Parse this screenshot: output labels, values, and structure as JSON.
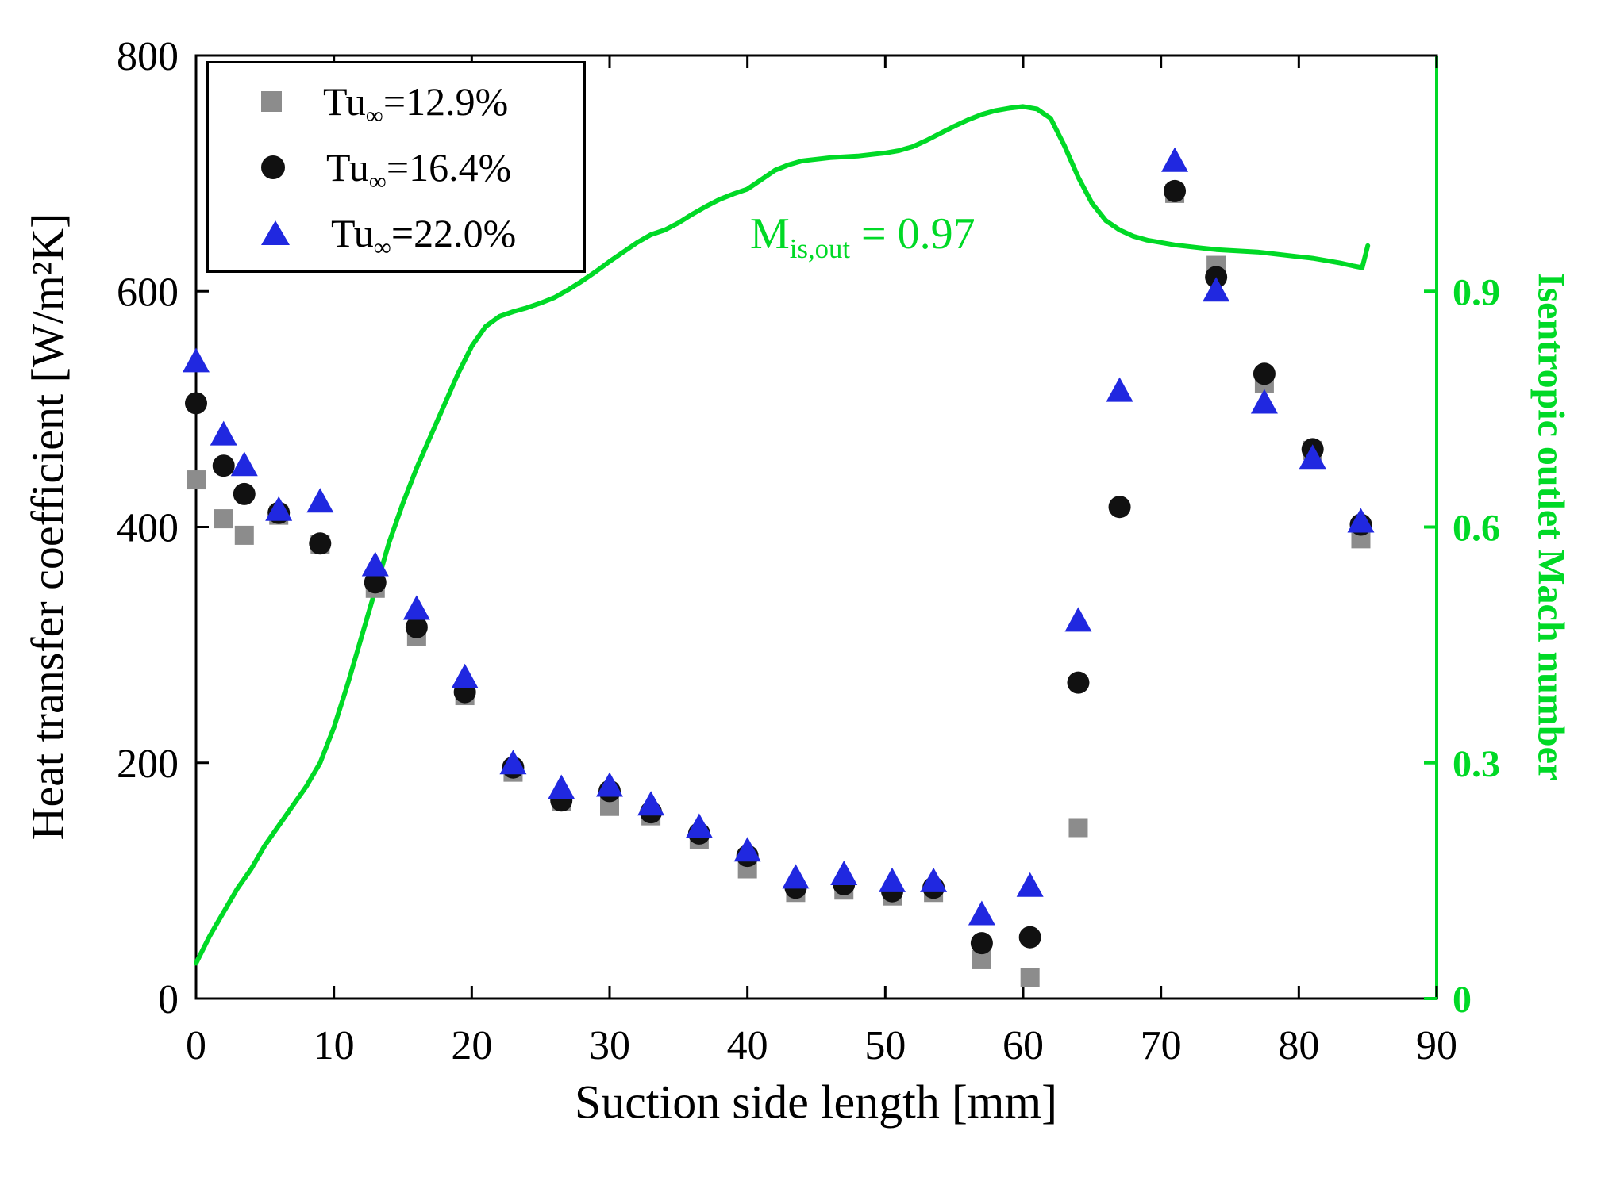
{
  "chart_data": {
    "type": "scatter",
    "title": "",
    "xlabel": "Suction side length [mm]",
    "ylabel_left": "Heat transfer coefficient [W/m²K]",
    "ylabel_right": "Isentropic outlet Mach number",
    "xlim": [
      0,
      90
    ],
    "ylim_left": [
      0,
      800
    ],
    "ylim_right": [
      0,
      1.2
    ],
    "x_ticks": [
      0,
      10,
      20,
      30,
      40,
      50,
      60,
      70,
      80,
      90
    ],
    "y_ticks_left": [
      0,
      200,
      400,
      600,
      800
    ],
    "y_ticks_right": [
      {
        "v": 0,
        "label": "0"
      },
      {
        "v": 0.3,
        "label": "0.3"
      },
      {
        "v": 0.6,
        "label": "0.6"
      },
      {
        "v": 0.9,
        "label": "0.9"
      }
    ],
    "grid": false,
    "legend_position": "top-left",
    "annotation": {
      "base": "M",
      "sub": "is,out",
      "rest": " = 0.97"
    },
    "series": [
      {
        "name": "Tu_inf=12.9%",
        "legend": {
          "base": "Tu",
          "sub": "∞",
          "rest": "=12.9%"
        },
        "marker": "square",
        "color": "#8c8c8c",
        "axis": "left",
        "points": [
          [
            0,
            440
          ],
          [
            2,
            407
          ],
          [
            3.5,
            393
          ],
          [
            6,
            410
          ],
          [
            9,
            385
          ],
          [
            13,
            348
          ],
          [
            16,
            307
          ],
          [
            19.5,
            257
          ],
          [
            23,
            192
          ],
          [
            26.5,
            167
          ],
          [
            30,
            163
          ],
          [
            33,
            155
          ],
          [
            36.5,
            135
          ],
          [
            40,
            110
          ],
          [
            43.5,
            90
          ],
          [
            47,
            92
          ],
          [
            50.5,
            87
          ],
          [
            53.5,
            90
          ],
          [
            57,
            33
          ],
          [
            60.5,
            18
          ],
          [
            64,
            145
          ],
          [
            71,
            683
          ],
          [
            74,
            622
          ],
          [
            77.5,
            522
          ],
          [
            81,
            465
          ],
          [
            84.5,
            390
          ]
        ]
      },
      {
        "name": "Tu_inf=16.4%",
        "legend": {
          "base": "Tu",
          "sub": "∞",
          "rest": "=16.4%"
        },
        "marker": "circle",
        "color": "#111111",
        "axis": "left",
        "points": [
          [
            0,
            505
          ],
          [
            2,
            452
          ],
          [
            3.5,
            428
          ],
          [
            6,
            412
          ],
          [
            9,
            386
          ],
          [
            13,
            353
          ],
          [
            16,
            315
          ],
          [
            19.5,
            260
          ],
          [
            23,
            196
          ],
          [
            26.5,
            168
          ],
          [
            30,
            176
          ],
          [
            33,
            158
          ],
          [
            36.5,
            140
          ],
          [
            40,
            121
          ],
          [
            43.5,
            94
          ],
          [
            47,
            97
          ],
          [
            50.5,
            91
          ],
          [
            53.5,
            94
          ],
          [
            57,
            47
          ],
          [
            60.5,
            52
          ],
          [
            64,
            268
          ],
          [
            67,
            417
          ],
          [
            71,
            685
          ],
          [
            74,
            612
          ],
          [
            77.5,
            530
          ],
          [
            81,
            466
          ],
          [
            84.5,
            402
          ]
        ]
      },
      {
        "name": "Tu_inf=22.0%",
        "legend": {
          "base": "Tu",
          "sub": "∞",
          "rest": "=22.0%"
        },
        "marker": "triangle",
        "color": "#2028e0",
        "axis": "left",
        "points": [
          [
            0,
            540
          ],
          [
            2,
            478
          ],
          [
            3.5,
            452
          ],
          [
            6,
            414
          ],
          [
            9,
            421
          ],
          [
            13,
            367
          ],
          [
            16,
            330
          ],
          [
            19.5,
            272
          ],
          [
            23,
            199
          ],
          [
            26.5,
            178
          ],
          [
            30,
            180
          ],
          [
            33,
            164
          ],
          [
            36.5,
            145
          ],
          [
            40,
            125
          ],
          [
            43.5,
            102
          ],
          [
            47,
            105
          ],
          [
            50.5,
            99
          ],
          [
            53.5,
            99
          ],
          [
            57,
            71
          ],
          [
            60.5,
            95
          ],
          [
            64,
            320
          ],
          [
            67,
            515
          ],
          [
            71,
            710
          ],
          [
            74,
            600
          ],
          [
            77.5,
            505
          ],
          [
            81,
            458
          ],
          [
            84.5,
            404
          ]
        ]
      }
    ],
    "line": {
      "name": "Isentropic outlet Mach number",
      "color": "#00d926",
      "axis": "right",
      "points": [
        [
          0,
          0.045
        ],
        [
          1,
          0.08
        ],
        [
          2,
          0.11
        ],
        [
          3,
          0.14
        ],
        [
          4,
          0.165
        ],
        [
          5,
          0.195
        ],
        [
          6,
          0.22
        ],
        [
          7,
          0.245
        ],
        [
          8,
          0.27
        ],
        [
          9,
          0.3
        ],
        [
          10,
          0.345
        ],
        [
          11,
          0.4
        ],
        [
          12,
          0.46
        ],
        [
          13,
          0.52
        ],
        [
          14,
          0.58
        ],
        [
          15,
          0.63
        ],
        [
          16,
          0.675
        ],
        [
          17,
          0.715
        ],
        [
          18,
          0.755
        ],
        [
          19,
          0.795
        ],
        [
          20,
          0.83
        ],
        [
          21,
          0.855
        ],
        [
          22,
          0.868
        ],
        [
          23,
          0.874
        ],
        [
          24,
          0.879
        ],
        [
          25,
          0.885
        ],
        [
          26,
          0.892
        ],
        [
          27,
          0.902
        ],
        [
          28,
          0.913
        ],
        [
          29,
          0.925
        ],
        [
          30,
          0.938
        ],
        [
          31,
          0.95
        ],
        [
          32,
          0.962
        ],
        [
          33,
          0.972
        ],
        [
          34,
          0.978
        ],
        [
          35,
          0.987
        ],
        [
          36,
          0.998
        ],
        [
          37,
          1.008
        ],
        [
          38,
          1.017
        ],
        [
          39,
          1.024
        ],
        [
          40,
          1.03
        ],
        [
          41,
          1.042
        ],
        [
          42,
          1.054
        ],
        [
          43,
          1.061
        ],
        [
          44,
          1.066
        ],
        [
          45,
          1.068
        ],
        [
          46,
          1.07
        ],
        [
          47,
          1.071
        ],
        [
          48,
          1.072
        ],
        [
          49,
          1.074
        ],
        [
          50,
          1.076
        ],
        [
          51,
          1.079
        ],
        [
          52,
          1.084
        ],
        [
          53,
          1.092
        ],
        [
          54,
          1.101
        ],
        [
          55,
          1.11
        ],
        [
          56,
          1.118
        ],
        [
          57,
          1.125
        ],
        [
          58,
          1.13
        ],
        [
          59,
          1.133
        ],
        [
          60,
          1.135
        ],
        [
          61,
          1.132
        ],
        [
          62,
          1.12
        ],
        [
          63,
          1.085
        ],
        [
          64,
          1.045
        ],
        [
          65,
          1.012
        ],
        [
          66,
          0.99
        ],
        [
          67,
          0.978
        ],
        [
          68,
          0.97
        ],
        [
          69,
          0.965
        ],
        [
          70,
          0.962
        ],
        [
          71,
          0.959
        ],
        [
          72,
          0.957
        ],
        [
          73,
          0.955
        ],
        [
          74,
          0.953
        ],
        [
          75,
          0.952
        ],
        [
          76,
          0.951
        ],
        [
          77,
          0.95
        ],
        [
          78,
          0.948
        ],
        [
          79,
          0.946
        ],
        [
          80,
          0.944
        ],
        [
          81,
          0.942
        ],
        [
          82,
          0.939
        ],
        [
          83,
          0.936
        ],
        [
          84,
          0.932
        ],
        [
          84.6,
          0.93
        ],
        [
          85,
          0.958
        ]
      ]
    }
  }
}
